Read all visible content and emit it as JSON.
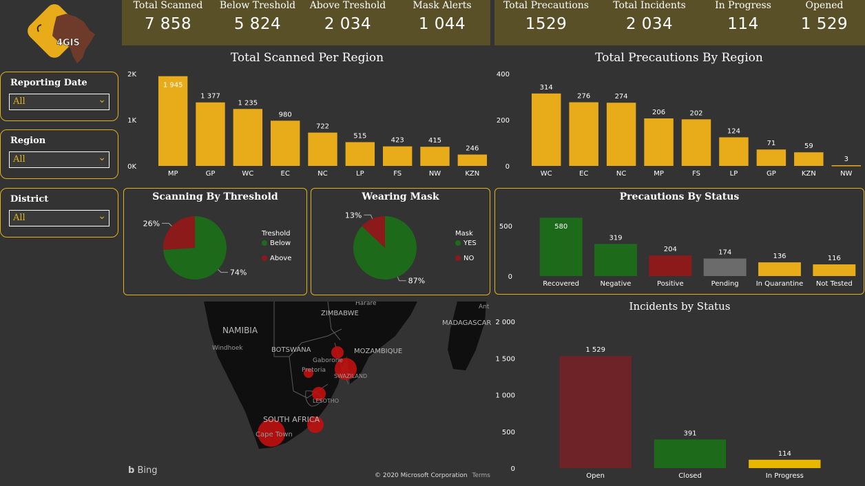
{
  "logo": {
    "text": "4GIS"
  },
  "kpis_left": [
    {
      "label": "Total Scanned",
      "value": "7 858"
    },
    {
      "label": "Below Treshold",
      "value": "5 824"
    },
    {
      "label": "Above Treshold",
      "value": "2 034"
    },
    {
      "label": "Mask Alerts",
      "value": "1 044"
    }
  ],
  "kpis_right": [
    {
      "label": "Total Precautions",
      "value": "1529"
    },
    {
      "label": "Total Incidents",
      "value": "2 034"
    },
    {
      "label": "In Progress",
      "value": "114"
    },
    {
      "label": "Opened",
      "value": "1 529"
    }
  ],
  "slicers": [
    {
      "label": "Reporting Date",
      "value": "All"
    },
    {
      "label": "Region",
      "value": "All"
    },
    {
      "label": "District",
      "value": "All"
    }
  ],
  "colors": {
    "gold": "#e8ab1a",
    "green": "#1d6a1a",
    "red": "#8c1a1a",
    "darkred": "#6e2329",
    "grey": "#6b6b6b",
    "accent": "#e0b21c"
  },
  "chart_data": [
    {
      "type": "bar",
      "title": "Total Scanned Per Region",
      "categories": [
        "MP",
        "GP",
        "WC",
        "EC",
        "NC",
        "LP",
        "FS",
        "NW",
        "KZN"
      ],
      "values": [
        1945,
        1377,
        1235,
        980,
        722,
        515,
        423,
        415,
        246
      ],
      "value_labels": [
        "1 945",
        "1 377",
        "1 235",
        "980",
        "722",
        "515",
        "423",
        "415",
        "246"
      ],
      "yticks": [
        "0K",
        "1K",
        "2K"
      ],
      "ylim": [
        0,
        2000
      ]
    },
    {
      "type": "bar",
      "title": "Total Precautions By Region",
      "categories": [
        "WC",
        "EC",
        "NC",
        "MP",
        "FS",
        "LP",
        "GP",
        "KZN",
        "NW"
      ],
      "values": [
        314,
        276,
        274,
        206,
        202,
        124,
        71,
        59,
        3
      ],
      "value_labels": [
        "314",
        "276",
        "274",
        "206",
        "202",
        "124",
        "71",
        "59",
        "3"
      ],
      "yticks": [
        "0",
        "200",
        "400"
      ],
      "ylim": [
        0,
        400
      ]
    },
    {
      "type": "pie",
      "title": "Scanning By Threshold",
      "legend_title": "Treshold",
      "slices": [
        {
          "name": "Below",
          "value": 74,
          "label": "74%"
        },
        {
          "name": "Above",
          "value": 26,
          "label": "26%"
        }
      ]
    },
    {
      "type": "pie",
      "title": "Wearing Mask",
      "legend_title": "Mask",
      "slices": [
        {
          "name": "YES",
          "value": 87,
          "label": "87%"
        },
        {
          "name": "NO",
          "value": 13,
          "label": "13%"
        }
      ]
    },
    {
      "type": "bar",
      "title": "Precautions By Status",
      "categories": [
        "Recovered",
        "Negative",
        "Positive",
        "Pending",
        "In Quarantine",
        "Not Tested"
      ],
      "values": [
        580,
        319,
        204,
        174,
        136,
        116
      ],
      "value_labels": [
        "580",
        "319",
        "204",
        "174",
        "136",
        "116"
      ],
      "yticks": [
        "0",
        "500"
      ],
      "ylim": [
        0,
        650
      ]
    },
    {
      "type": "bar",
      "title": "Incidents by Status",
      "categories": [
        "Open",
        "Closed",
        "In Progress"
      ],
      "values": [
        1529,
        391,
        114
      ],
      "value_labels": [
        "1 529",
        "391",
        "114"
      ],
      "yticks": [
        "0",
        "500",
        "1 000",
        "1 500",
        "2 000"
      ],
      "ylim": [
        0,
        2000
      ]
    }
  ],
  "map": {
    "labels": {
      "namibia": "NAMIBIA",
      "zimbabwe": "ZIMBABWE",
      "botswana": "BOTSWANA",
      "mozambique": "MOZAMBIQUE",
      "madagascar": "MADAGASCAR",
      "windhoek": "Windhoek",
      "gaborone": "Gaborone",
      "pretoria": "Pretoria",
      "swaziland": "SWAZILAND",
      "lesotho": "LESOTHO",
      "south_africa": "SOUTH AFRICA",
      "cape_town": "Cape Town",
      "harare": "Harare",
      "antananarivo": "Ant"
    },
    "bing": "Bing",
    "copyright": "© 2020 Microsoft Corporation",
    "terms": "Terms"
  }
}
